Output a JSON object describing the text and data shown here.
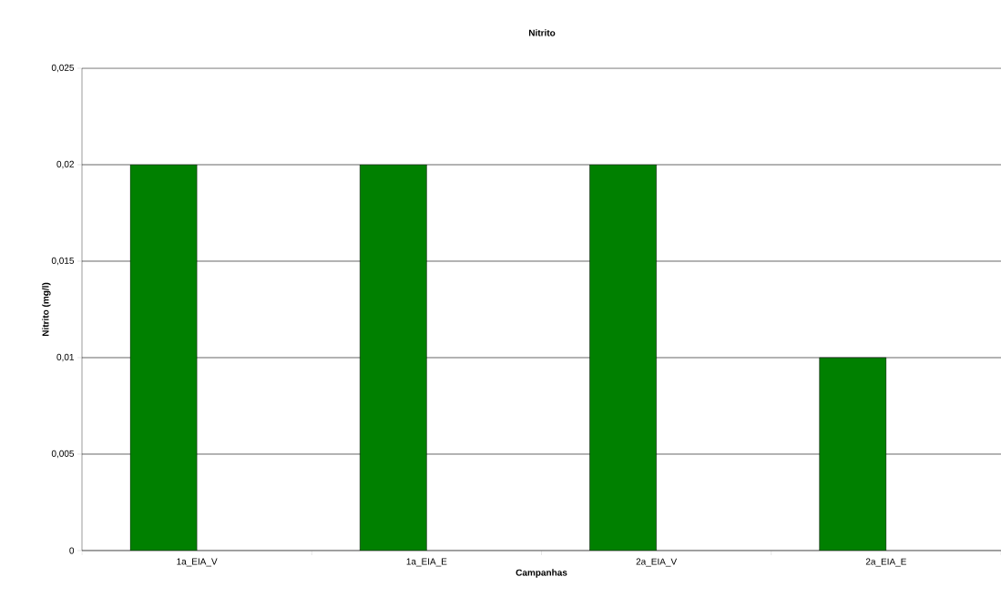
{
  "chart_data": {
    "type": "bar",
    "title": "Nitrito",
    "xlabel": "Campanhas",
    "ylabel": "Nitrito (mg/l)",
    "categories": [
      "1a_EIA_V",
      "1a_EIA_E",
      "2a_EIA_V",
      "2a_EIA_E"
    ],
    "values": [
      0.02,
      0.02,
      0.02,
      0.01
    ],
    "color": "#008000",
    "ylim": [
      0,
      0.025
    ],
    "yticks": [
      {
        "value": 0,
        "label": "0"
      },
      {
        "value": 0.005,
        "label": "0,005"
      },
      {
        "value": 0.01,
        "label": "0,01"
      },
      {
        "value": 0.015,
        "label": "0,015"
      },
      {
        "value": 0.02,
        "label": "0,02"
      },
      {
        "value": 0.025,
        "label": "0,025"
      }
    ],
    "grid": "y"
  }
}
